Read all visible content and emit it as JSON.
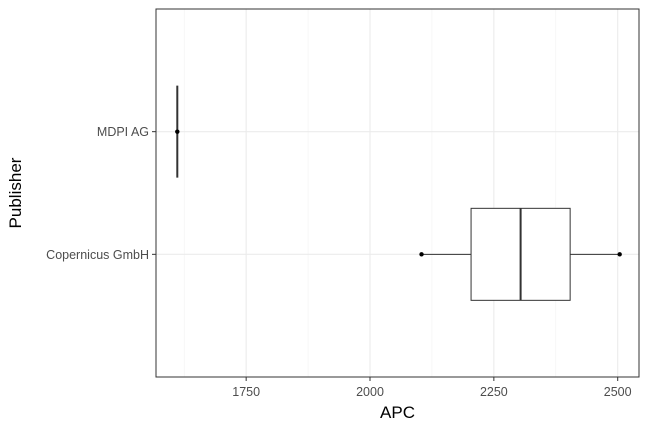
{
  "chart_data": {
    "type": "boxplot",
    "orientation": "horizontal",
    "xlabel": "APC",
    "ylabel": "Publisher",
    "xlim": [
      1568,
      2543
    ],
    "x_ticks": [
      1750,
      2000,
      2250,
      2500
    ],
    "x_tick_labels": [
      "1750",
      "2000",
      "2250",
      "2500"
    ],
    "categories": [
      "Copernicus GmbH",
      "MDPI AG"
    ],
    "boxes": [
      {
        "category": "Copernicus GmbH",
        "min": 2104,
        "q1": 2204,
        "median": 2304,
        "q3": 2404,
        "max": 2504,
        "outliers": [
          2104,
          2504
        ]
      },
      {
        "category": "MDPI AG",
        "min": 1611,
        "q1": 1611,
        "median": 1611,
        "q3": 1611,
        "max": 1611,
        "outliers": [
          1611
        ]
      }
    ],
    "grid": true,
    "legend": "none"
  }
}
